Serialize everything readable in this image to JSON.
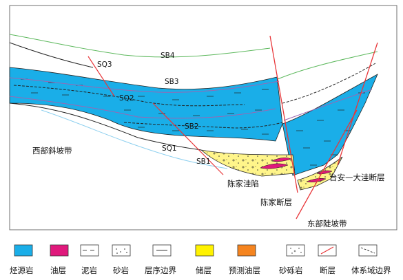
{
  "diagram": {
    "colors": {
      "source_rock": "#1aaee8",
      "oil_layer": "#e0197c",
      "reservoir": "#fff58a",
      "predicted_oil": "#f5841f",
      "boundary_green": "#5cb85c",
      "sq_boundary_purple": "#9b67b3",
      "fault_red": "#e8373a",
      "light_blue_line": "#8ed0ef",
      "frame": "#6f6f6f"
    },
    "labels": {
      "sb4": "SB4",
      "sb3": "SB3",
      "sb2": "SB2",
      "sb1": "SB1",
      "sq3": "SQ3",
      "sq2": "SQ2",
      "sq1": "SQ1",
      "west_slope": "西部斜坡带",
      "chenjia_sag": "陈家洼陷",
      "chenjia_fault": "陈家断层",
      "taian_dawa_fault": "台安—大洼断层",
      "east_steep_slope": "东部陡坡带"
    },
    "legend": [
      {
        "key": "source_rock",
        "label": "烃源岩"
      },
      {
        "key": "oil_layer",
        "label": "油层"
      },
      {
        "key": "mudstone",
        "label": "泥岩"
      },
      {
        "key": "sandstone",
        "label": "砂岩"
      },
      {
        "key": "sequence_boundary",
        "label": "层序边界"
      },
      {
        "key": "reservoir",
        "label": "储层"
      },
      {
        "key": "predicted_oil",
        "label": "预测油层"
      },
      {
        "key": "glutenite",
        "label": "砂砾岩"
      },
      {
        "key": "fault",
        "label": "断层"
      },
      {
        "key": "systems_tract_boundary",
        "label": "体系域边界"
      }
    ]
  }
}
